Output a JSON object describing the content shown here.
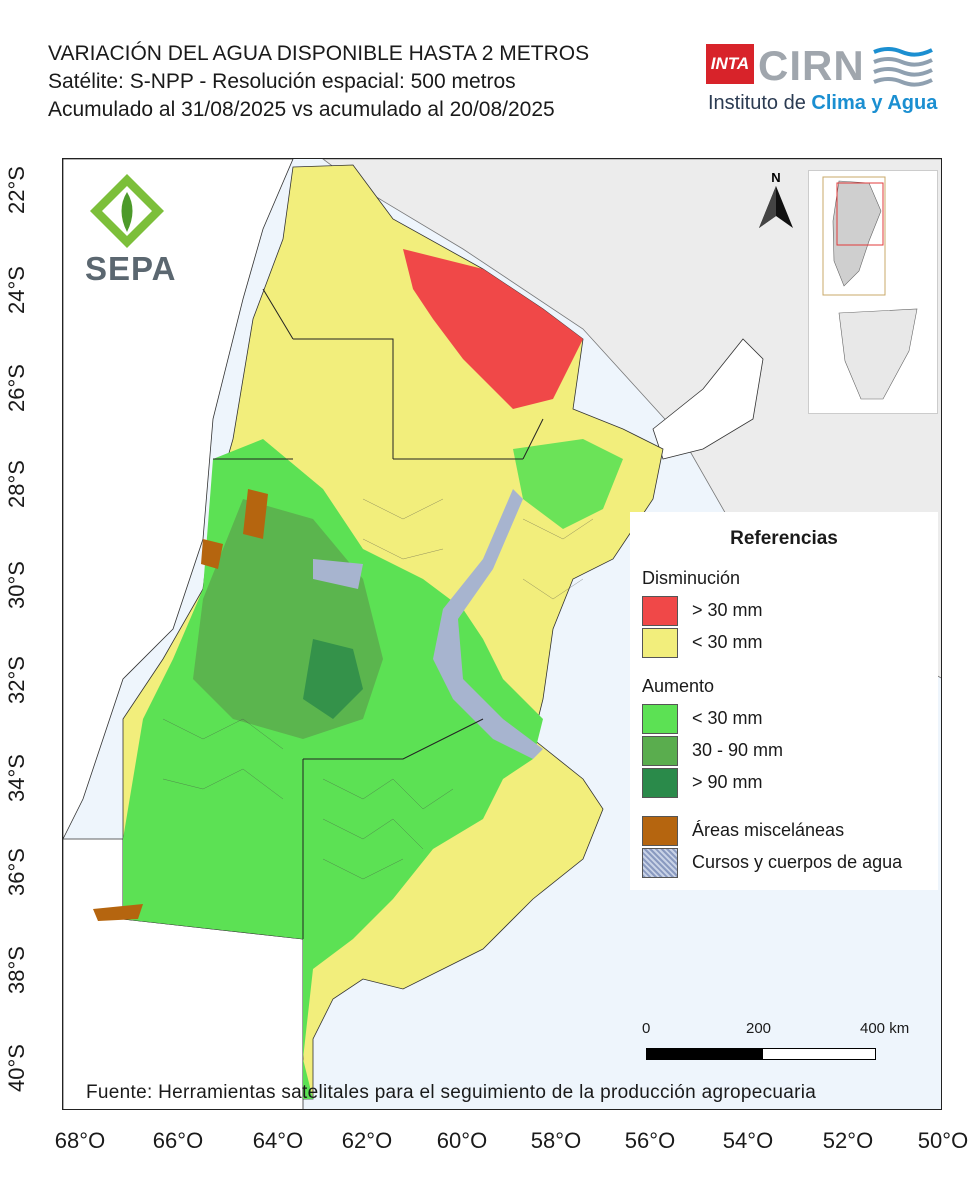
{
  "title": {
    "line1": "VARIACIÓN DEL AGUA DISPONIBLE HASTA 2 METROS",
    "line2": "Satélite: S-NPP - Resolución espacial: 500 metros",
    "line3": "Acumulado al 31/08/2025 vs acumulado al 20/08/2025"
  },
  "logos": {
    "inta": "INTA",
    "cirn": "CIRN",
    "cirn_sub_prefix": "Instituto de ",
    "cirn_sub_accent": "Clima y Agua",
    "sepa": "SEPA"
  },
  "axes": {
    "lat_ticks": [
      "22°S",
      "24°S",
      "26°S",
      "28°S",
      "30°S",
      "32°S",
      "34°S",
      "36°S",
      "38°S",
      "40°S"
    ],
    "lon_ticks": [
      "68°O",
      "66°O",
      "64°O",
      "62°O",
      "60°O",
      "58°O",
      "56°O",
      "54°O",
      "52°O",
      "50°O"
    ]
  },
  "north_label": "N",
  "legend": {
    "title": "Referencias",
    "decrease_group": "Disminución",
    "increase_group": "Aumento",
    "items": [
      {
        "label": "> 30 mm",
        "color": "#f04848"
      },
      {
        "label": "< 30 mm",
        "color": "#f2ee7c"
      },
      {
        "label": " < 30 mm",
        "color": "#5ce154"
      },
      {
        "label": "30 - 90 mm",
        "color": "#5aad4e"
      },
      {
        "label": "> 90 mm",
        "color": "#2a8a4a"
      },
      {
        "label": "Áreas misceláneas",
        "color": "#b5650f"
      },
      {
        "label": "Cursos y cuerpos de agua",
        "color": "#a7b4cf"
      }
    ]
  },
  "scalebar": {
    "labels": [
      "0",
      "200",
      "400 km"
    ]
  },
  "source": "Fuente: Herramientas satelitales para el seguimiento de la producción agropecuaria",
  "colors": {
    "ocean": "#eef5fc",
    "neighbor": "#ececec",
    "outside": "#ffffff",
    "yellow": "#f2ee7c",
    "red": "#f04848",
    "green": "#5ce154",
    "mid_green": "#5aad4e",
    "dark_green": "#2a8a4a",
    "brown": "#b5650f",
    "water": "#a7b4cf"
  }
}
